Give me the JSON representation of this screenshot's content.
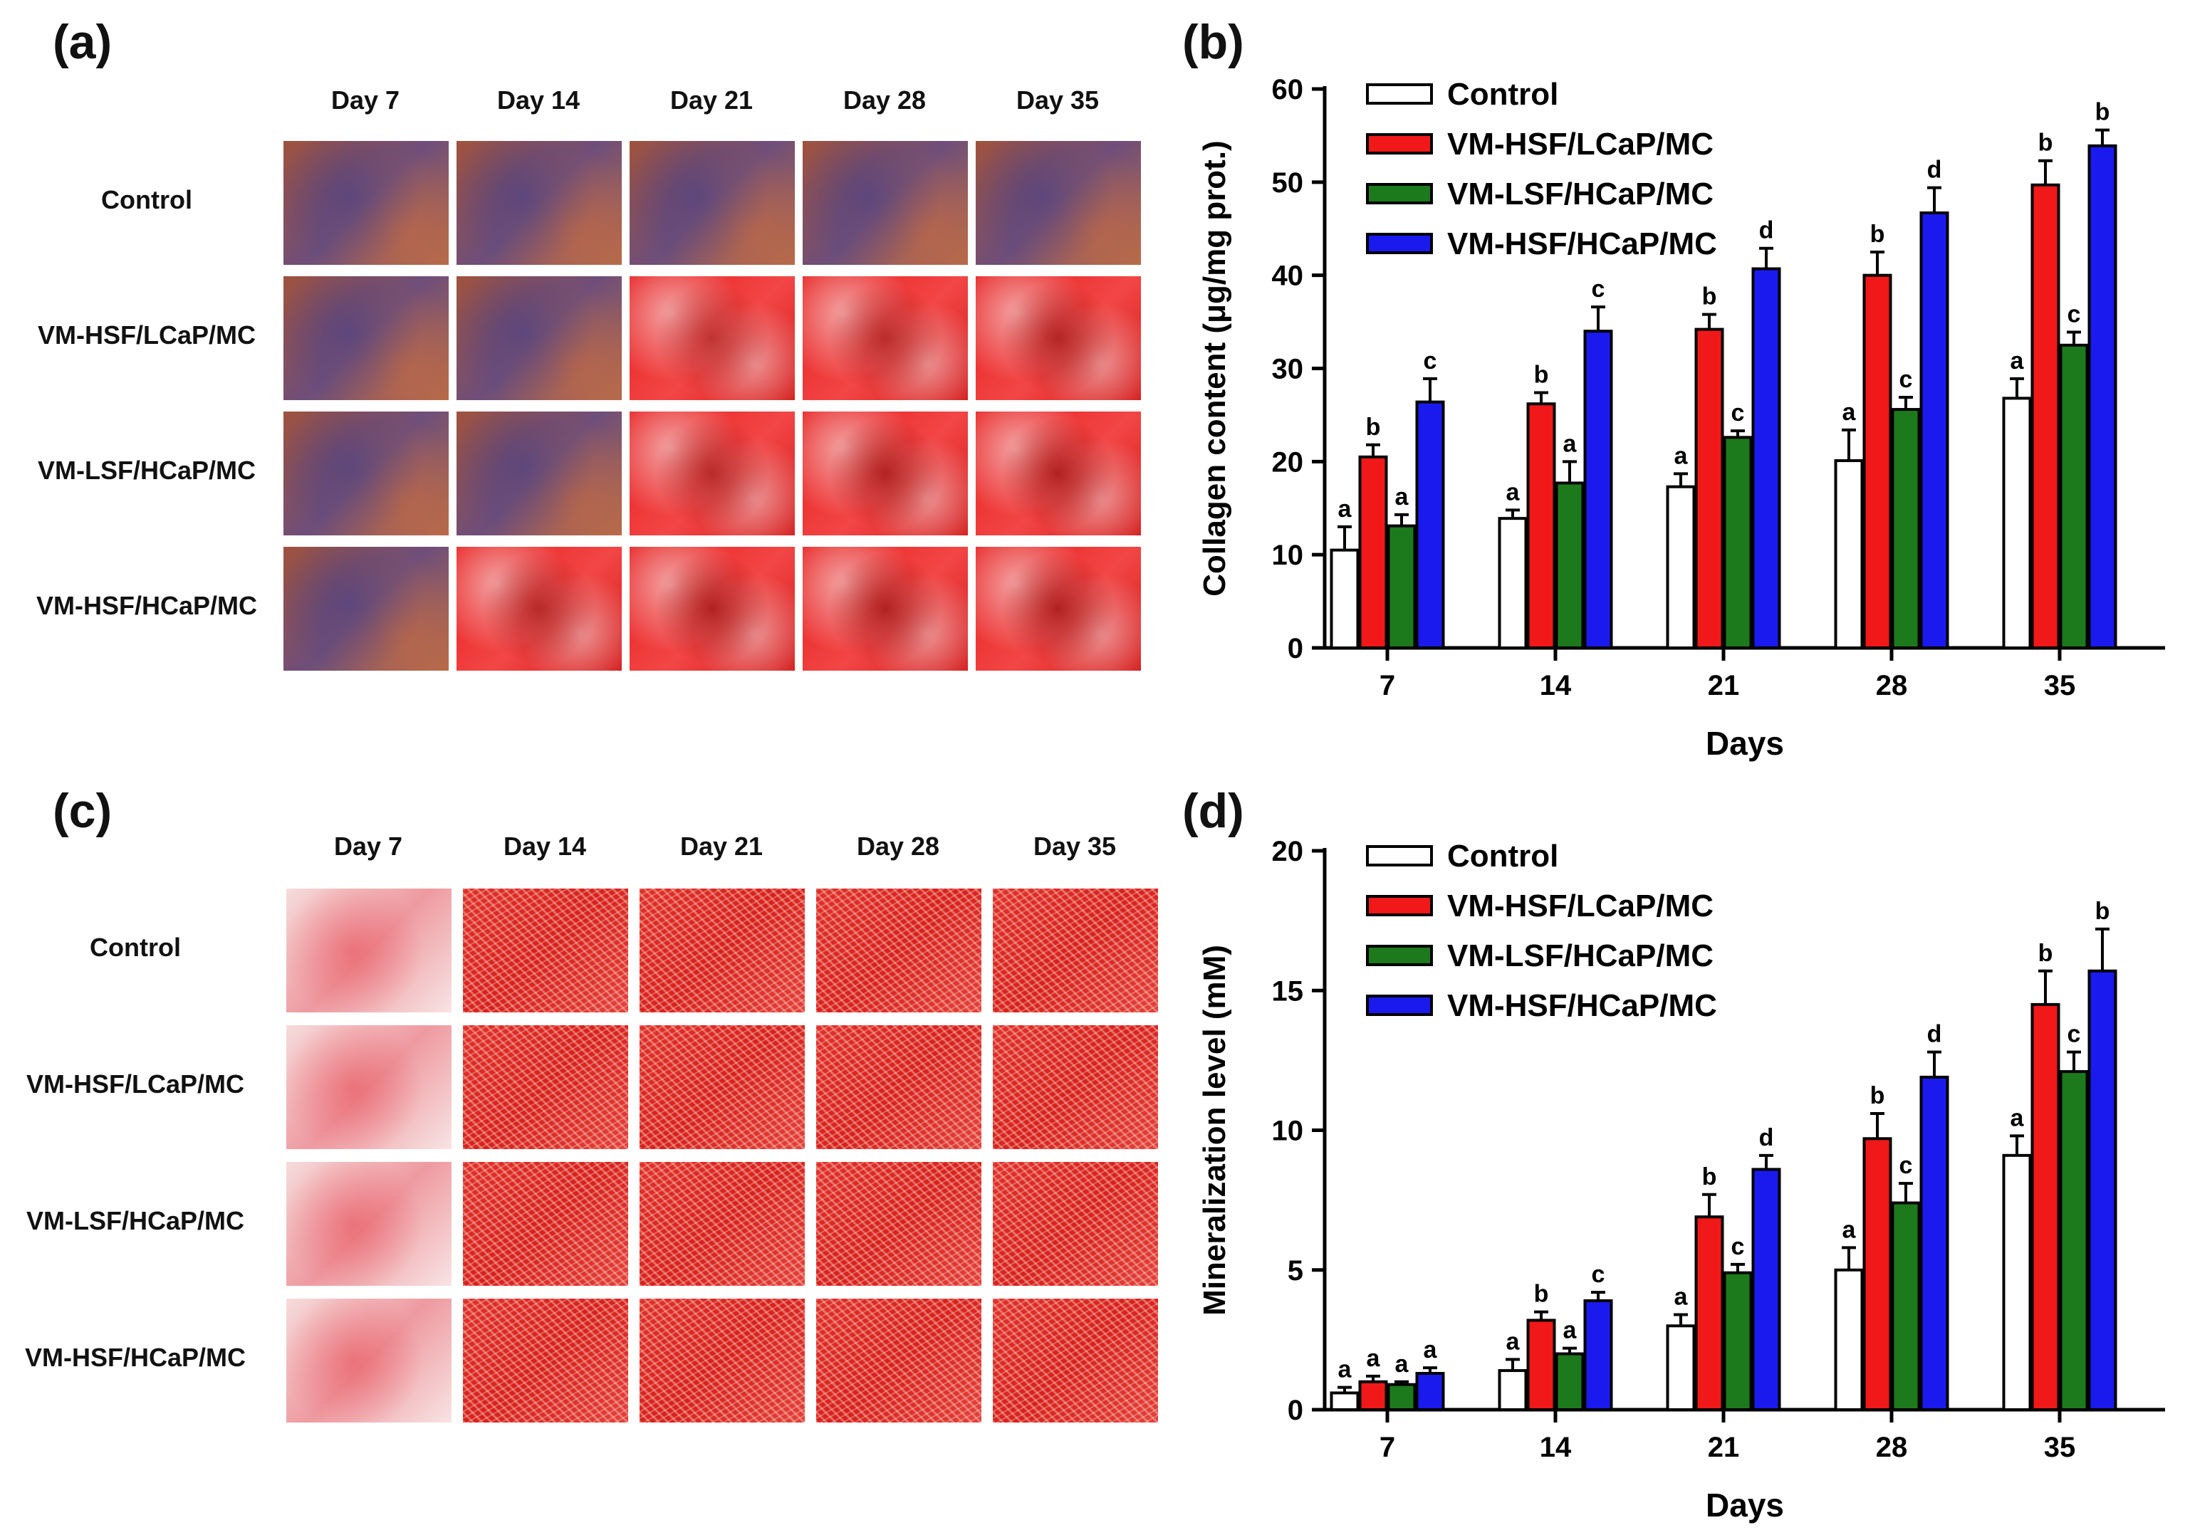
{
  "panels": {
    "a": "(a)",
    "b": "(b)",
    "c": "(c)",
    "d": "(d)"
  },
  "gridA": {
    "days": [
      "Day 7",
      "Day 14",
      "Day 21",
      "Day 28",
      "Day 35"
    ],
    "groups": [
      "Control",
      "VM-HSF/LCaP/MC",
      "VM-LSF/HCaP/MC",
      "VM-HSF/HCaP/MC"
    ]
  },
  "gridC": {
    "days": [
      "Day 7",
      "Day 14",
      "Day 21",
      "Day 28",
      "Day 35"
    ],
    "groups": [
      "Control",
      "VM-HSF/LCaP/MC",
      "VM-LSF/HCaP/MC",
      "VM-HSF/HCaP/MC"
    ]
  },
  "colors": {
    "Control": "#ffffff",
    "VM-HSF/LCaP/MC": "#f01818",
    "VM-LSF/HCaP/MC": "#1c7a1c",
    "VM-HSF/HCaP/MC": "#1a1aee"
  },
  "chart_data": [
    {
      "panel": "b",
      "type": "bar",
      "categories": [
        "7",
        "14",
        "21",
        "28",
        "35"
      ],
      "xlabel": "Days",
      "ylabel": "Collagen content (μg/mg prot.)",
      "ylim": [
        0,
        60
      ],
      "yticks": [
        "0",
        "10",
        "20",
        "30",
        "40",
        "50",
        "60"
      ],
      "legend": "top-left",
      "series": [
        {
          "name": "Control",
          "values": [
            10.5,
            13.9,
            17.3,
            20.1,
            26.8
          ],
          "errors": [
            2.5,
            0.9,
            1.4,
            3.3,
            2.1
          ],
          "letters": [
            "a",
            "a",
            "a",
            "a",
            "a"
          ]
        },
        {
          "name": "VM-HSF/LCaP/MC",
          "values": [
            20.5,
            26.2,
            34.2,
            40.0,
            49.7
          ],
          "errors": [
            1.3,
            1.2,
            1.6,
            2.5,
            2.6
          ],
          "letters": [
            "b",
            "b",
            "b",
            "b",
            "b"
          ]
        },
        {
          "name": "VM-LSF/HCaP/MC",
          "values": [
            13.1,
            17.7,
            22.6,
            25.6,
            32.5
          ],
          "errors": [
            1.2,
            2.3,
            0.7,
            1.3,
            1.4
          ],
          "letters": [
            "a",
            "a",
            "c",
            "c",
            "c"
          ]
        },
        {
          "name": "VM-HSF/HCaP/MC",
          "values": [
            26.4,
            34.0,
            40.7,
            46.7,
            53.9
          ],
          "errors": [
            2.5,
            2.6,
            2.2,
            2.7,
            1.7
          ],
          "letters": [
            "c",
            "c",
            "d",
            "d",
            "b"
          ]
        }
      ]
    },
    {
      "panel": "d",
      "type": "bar",
      "categories": [
        "7",
        "14",
        "21",
        "28",
        "35"
      ],
      "xlabel": "Days",
      "ylabel": "Mineralization level (mM)",
      "ylim": [
        0,
        20
      ],
      "yticks": [
        "0",
        "5",
        "10",
        "15",
        "20"
      ],
      "legend": "top-left",
      "series": [
        {
          "name": "Control",
          "values": [
            0.6,
            1.4,
            3.0,
            5.0,
            9.1
          ],
          "errors": [
            0.2,
            0.4,
            0.4,
            0.8,
            0.7
          ],
          "letters": [
            "a",
            "a",
            "a",
            "a",
            "a"
          ]
        },
        {
          "name": "VM-HSF/LCaP/MC",
          "values": [
            1.0,
            3.2,
            6.9,
            9.7,
            14.5
          ],
          "errors": [
            0.2,
            0.3,
            0.8,
            0.9,
            1.2
          ],
          "letters": [
            "a",
            "b",
            "b",
            "b",
            "b"
          ]
        },
        {
          "name": "VM-LSF/HCaP/MC",
          "values": [
            0.9,
            2.0,
            4.9,
            7.4,
            12.1
          ],
          "errors": [
            0.1,
            0.2,
            0.3,
            0.7,
            0.7
          ],
          "letters": [
            "a",
            "a",
            "c",
            "c",
            "c"
          ]
        },
        {
          "name": "VM-HSF/HCaP/MC",
          "values": [
            1.3,
            3.9,
            8.6,
            11.9,
            15.7
          ],
          "errors": [
            0.2,
            0.3,
            0.5,
            0.9,
            1.5
          ],
          "letters": [
            "a",
            "c",
            "d",
            "d",
            "b"
          ]
        }
      ]
    }
  ]
}
